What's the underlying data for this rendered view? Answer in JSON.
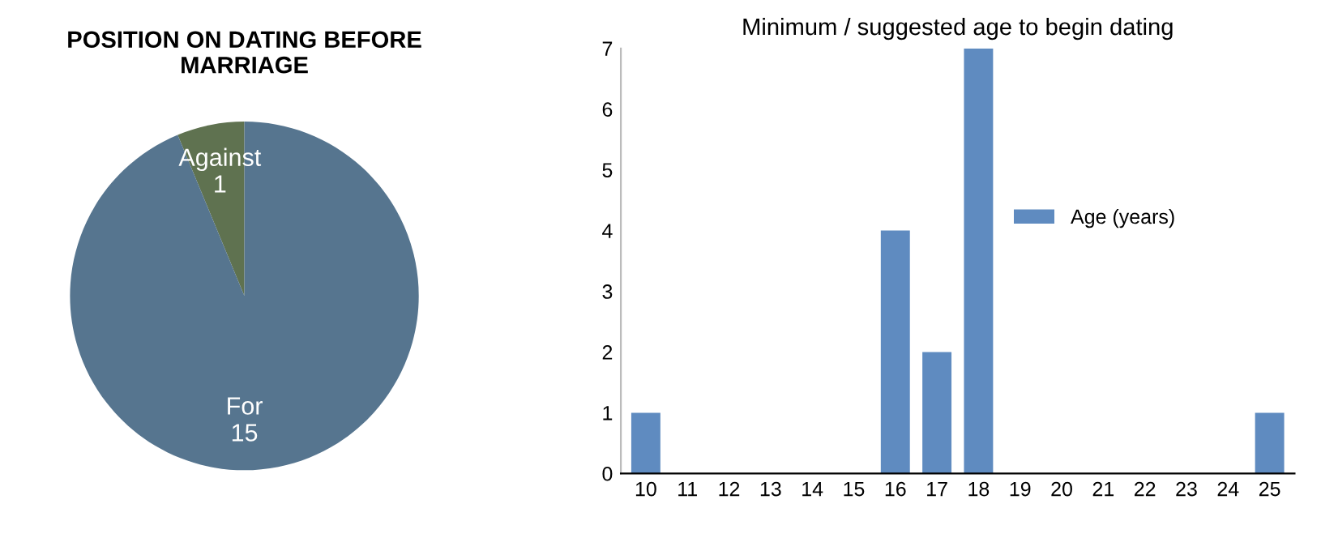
{
  "chart_data": [
    {
      "type": "pie",
      "title": "POSITION ON DATING BEFORE MARRIAGE",
      "categories": [
        "Against",
        "For"
      ],
      "values": [
        1,
        15
      ],
      "colors": [
        "#5f7250",
        "#56758f"
      ],
      "data_labels": true,
      "legend": false
    },
    {
      "type": "bar",
      "title": "Minimum / suggested age to begin dating",
      "categories": [
        "10",
        "11",
        "12",
        "13",
        "14",
        "15",
        "16",
        "17",
        "18",
        "19",
        "20",
        "21",
        "22",
        "23",
        "24",
        "25"
      ],
      "series": [
        {
          "name": "Age (years)",
          "color": "#5f8bc0",
          "values": [
            1,
            0,
            0,
            0,
            0,
            0,
            4,
            2,
            7,
            0,
            0,
            0,
            0,
            0,
            0,
            1
          ]
        }
      ],
      "ylim": [
        0,
        7
      ],
      "yticks": [
        0,
        1,
        2,
        3,
        4,
        5,
        6,
        7
      ],
      "grid": false,
      "legend": "right"
    }
  ]
}
